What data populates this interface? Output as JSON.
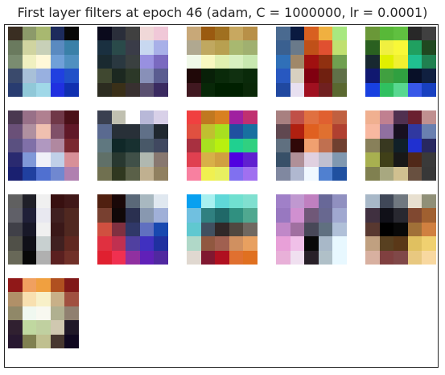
{
  "chart_data": {
    "type": "heatmap",
    "title": "First layer filters at epoch 46 (adam, C = 1000000, lr = 0.0001)",
    "grid": {
      "rows": 4,
      "cols": 5
    },
    "filters": [
      [
        [
          "#3a2e22",
          "#8c9a6a",
          "#a8b870",
          "#1d2b5c",
          "#080808"
        ],
        [
          "#6a7a5e",
          "#d0d4a0",
          "#c8d0b8",
          "#5a8ac0",
          "#3a80a8"
        ],
        [
          "#7a8c70",
          "#f0f0c0",
          "#fff8d8",
          "#70a0d8",
          "#5090c0"
        ],
        [
          "#3a4a6c",
          "#a8c0d8",
          "#98b0e0",
          "#2040e0",
          "#2050c8"
        ],
        [
          "#283c70",
          "#90c8d8",
          "#a0d8e8",
          "#2030e0",
          "#1030b0"
        ]
      ],
      [
        [
          "#0a0a1c",
          "#2a2e3a",
          "#404040",
          "#f0d8d8",
          "#f0c8d8"
        ],
        [
          "#1a3040",
          "#2a4a4a",
          "#3a3c48",
          "#c8d8f0",
          "#a8b0e8"
        ],
        [
          "#1a2a30",
          "#2a3840",
          "#3a4040",
          "#9890e0",
          "#7a6ac0"
        ],
        [
          "#404830",
          "#1c2820",
          "#2c3828",
          "#8890b8",
          "#5a5c90"
        ],
        [
          "#2c2c20",
          "#3a3018",
          "#383030",
          "#5a5070",
          "#3a2a60"
        ]
      ],
      [
        [
          "#c8a878",
          "#9a5a10",
          "#a07020",
          "#c8a860",
          "#b89048"
        ],
        [
          "#b0a890",
          "#c0a860",
          "#b8a050",
          "#a8b870",
          "#a0b070"
        ],
        [
          "#f0f8e8",
          "#f8f8c0",
          "#e0f0b0",
          "#d8f0c0",
          "#c8e8b0"
        ],
        [
          "#200808",
          "#082008",
          "#0a2a0a",
          "#103010",
          "#0a2a0a"
        ],
        [
          "#401820",
          "#082808",
          "#002000",
          "#002000",
          "#0a2808"
        ]
      ],
      [
        [
          "#4a6a90",
          "#0a1a40",
          "#d86020",
          "#f0b040",
          "#a8e880"
        ],
        [
          "#3a6090",
          "#6a7a8a",
          "#c05018",
          "#e05030",
          "#c0e070"
        ],
        [
          "#3070b8",
          "#a08868",
          "#a01010",
          "#903010",
          "#70a050"
        ],
        [
          "#2858c0",
          "#d8d0c0",
          "#800010",
          "#702010",
          "#607048"
        ],
        [
          "#2048a0",
          "#e8e0f0",
          "#a01020",
          "#702020",
          "#5a6830"
        ]
      ],
      [
        [
          "#6a9838",
          "#58b838",
          "#60c040",
          "#282828",
          "#404040"
        ],
        [
          "#2a6020",
          "#f0f040",
          "#f8f838",
          "#20a060",
          "#204820"
        ],
        [
          "#182830",
          "#e0f000",
          "#f0f030",
          "#20c090",
          "#208050"
        ],
        [
          "#101870",
          "#40a040",
          "#30a040",
          "#081028",
          "#102040"
        ],
        [
          "#1840e0",
          "#30c060",
          "#58d890",
          "#3858e8",
          "#1840c0"
        ]
      ],
      [
        [
          "#4a3850",
          "#987088",
          "#b08090",
          "#703848",
          "#4a1018"
        ],
        [
          "#6a5078",
          "#b090a0",
          "#f0c0b0",
          "#805068",
          "#601828"
        ],
        [
          "#5a5080",
          "#8070a8",
          "#b098c0",
          "#b088a0",
          "#7a2830"
        ],
        [
          "#2a2a70",
          "#8098d8",
          "#f0f0f8",
          "#c0d0e8",
          "#d89098"
        ],
        [
          "#1a2070",
          "#2040a0",
          "#5070d0",
          "#7088d0",
          "#b080b0"
        ]
      ],
      [
        [
          "#3a4050",
          "#c0c0b0",
          "#ffffff",
          "#b8b8d8",
          "#d8d0e8"
        ],
        [
          "#5a6a90",
          "#283038",
          "#283038",
          "#607088",
          "#202830"
        ],
        [
          "#607880",
          "#102828",
          "#183030",
          "#485868",
          "#404860"
        ],
        [
          "#607068",
          "#283830",
          "#405048",
          "#b0b8b0",
          "#887870"
        ],
        [
          "#707050",
          "#303820",
          "#5a6048",
          "#c0b090",
          "#908060"
        ]
      ],
      [
        [
          "#f04040",
          "#c07820",
          "#d88020",
          "#a020a0",
          "#c03070"
        ],
        [
          "#e05040",
          "#c0c030",
          "#a8e020",
          "#2050a0",
          "#1870a0"
        ],
        [
          "#a83040",
          "#a8e020",
          "#b8f010",
          "#20d090",
          "#30d080"
        ],
        [
          "#e04050",
          "#d8b048",
          "#d0a040",
          "#5000e0",
          "#6020d0"
        ],
        [
          "#f880a0",
          "#f0f050",
          "#e8f060",
          "#8070f0",
          "#a070f0"
        ]
      ],
      [
        [
          "#a88080",
          "#c05048",
          "#e07040",
          "#e06030",
          "#c06040"
        ],
        [
          "#604850",
          "#b02010",
          "#e06020",
          "#e07030",
          "#b04030"
        ],
        [
          "#607080",
          "#300808",
          "#f0a070",
          "#c07050",
          "#704030"
        ],
        [
          "#385068",
          "#b09098",
          "#e0d0e0",
          "#c0c0d0",
          "#8098b0"
        ],
        [
          "#8088a0",
          "#b0b8d0",
          "#f0f8ff",
          "#5080d0",
          "#2050a0"
        ]
      ],
      [
        [
          "#f0b090",
          "#c08090",
          "#503050",
          "#6a2030",
          "#c09090"
        ],
        [
          "#f8b8a0",
          "#9070a0",
          "#181020",
          "#3038a0",
          "#6a80b0"
        ],
        [
          "#88805a",
          "#383820",
          "#102028",
          "#2030d0",
          "#282860"
        ],
        [
          "#a8b050",
          "#404018",
          "#181818",
          "#502818",
          "#3a3a3a"
        ],
        [
          "#808050",
          "#a8a880",
          "#d0c090",
          "#685040",
          "#383838"
        ]
      ],
      [
        [
          "#606060",
          "#202028",
          "#f0f0f0",
          "#381010",
          "#401818"
        ],
        [
          "#606068",
          "#202038",
          "#e8e8f0",
          "#402020",
          "#502820"
        ],
        [
          "#404048",
          "#181828",
          "#f0f0f0",
          "#3a1818",
          "#502820"
        ],
        [
          "#505048",
          "#101018",
          "#c8d0d0",
          "#402020",
          "#602820"
        ],
        [
          "#686858",
          "#080808",
          "#b0b0b0",
          "#5a2020",
          "#703028"
        ]
      ],
      [
        [
          "#502010",
          "#1a0808",
          "#5a6878",
          "#a8b8c0",
          "#e0e8f0"
        ],
        [
          "#784030",
          "#100808",
          "#2a3050",
          "#8898b0",
          "#a0b0d8"
        ],
        [
          "#d05040",
          "#803040",
          "#303868",
          "#6070c0",
          "#1848b0"
        ],
        [
          "#e03040",
          "#c03050",
          "#5040a0",
          "#4030c0",
          "#2030a0"
        ],
        [
          "#e02030",
          "#f03050",
          "#9030a0",
          "#6020b8",
          "#5028a0"
        ]
      ],
      [
        [
          "#08a0f0",
          "#a8f0f0",
          "#60d8d8",
          "#70e0d0",
          "#80e0d0"
        ],
        [
          "#70c0e0",
          "#308080",
          "#206868",
          "#309080",
          "#50a890"
        ],
        [
          "#60c8d0",
          "#405060",
          "#302828",
          "#504840",
          "#706860"
        ],
        [
          "#b0d8c8",
          "#905840",
          "#a06050",
          "#d09060",
          "#e8a060"
        ],
        [
          "#e0d8d0",
          "#801830",
          "#b01020",
          "#e07030",
          "#e07020"
        ]
      ],
      [
        [
          "#a080c8",
          "#c098d0",
          "#c080c0",
          "#686898",
          "#9090c0"
        ],
        [
          "#9878c0",
          "#d090d0",
          "#705878",
          "#686890",
          "#a0a8d0"
        ],
        [
          "#c088c8",
          "#a070a0",
          "#484858",
          "#607080",
          "#b0c0d8"
        ],
        [
          "#e8a0d8",
          "#f0c0e8",
          "#080808",
          "#a8b8c8",
          "#e8f8ff"
        ],
        [
          "#e8b0d8",
          "#f0e0f0",
          "#282028",
          "#b0c0c8",
          "#e8f8ff"
        ]
      ],
      [
        [
          "#a8b8c8",
          "#404858",
          "#707880",
          "#e8e0d0",
          "#909078"
        ],
        [
          "#403040",
          "#101018",
          "#282830",
          "#804830",
          "#a06030"
        ],
        [
          "#583830",
          "#000000",
          "#080808",
          "#a07038",
          "#d08040"
        ],
        [
          "#c0a080",
          "#584020",
          "#5a3818",
          "#e0c060",
          "#f0d070"
        ],
        [
          "#d8b0a0",
          "#804040",
          "#804848",
          "#e8c880",
          "#f8d8a0"
        ]
      ],
      [
        [
          "#901818",
          "#f0a060",
          "#f0a040",
          "#b05020",
          "#801818"
        ],
        [
          "#b09068",
          "#f8e0b0",
          "#f8f0c8",
          "#c8b088",
          "#a05040"
        ],
        [
          "#908868",
          "#f0f8f0",
          "#f8f8f0",
          "#b0b090",
          "#908070"
        ],
        [
          "#302030",
          "#c0d8a0",
          "#c0d0a0",
          "#d0c8b0",
          "#201828"
        ],
        [
          "#281830",
          "#808050",
          "#c0c090",
          "#483830",
          "#100820"
        ]
      ]
    ]
  }
}
